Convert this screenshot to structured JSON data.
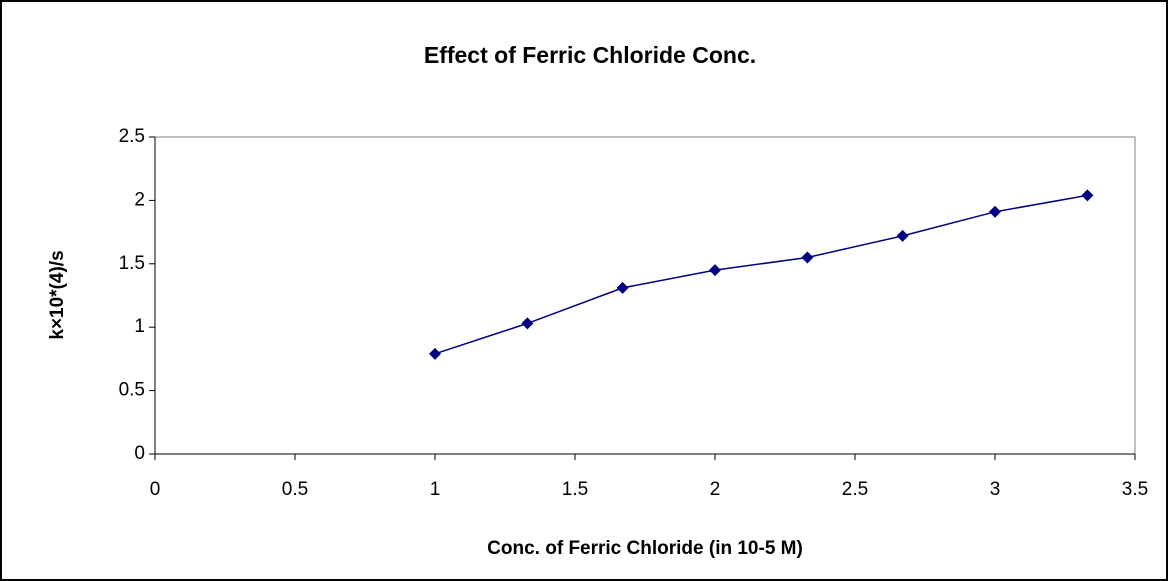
{
  "chart_data": {
    "type": "line",
    "title": "Effect of Ferric Chloride Conc.",
    "x_label": "Conc. of Ferric Chloride (in 10-5 M)",
    "y_label": "k×10*(4)/s",
    "x": [
      1,
      1.33,
      1.67,
      2,
      2.33,
      2.67,
      3,
      3.33
    ],
    "series": [
      {
        "color": "#000080",
        "values": [
          0.79,
          1.03,
          1.31,
          1.45,
          1.55,
          1.72,
          1.91,
          2.04
        ]
      }
    ],
    "xlim": [
      0,
      3.5
    ],
    "xticks": [
      0,
      0.5,
      1,
      1.5,
      2,
      2.5,
      3,
      3.5
    ],
    "ylim": [
      0,
      2.5
    ],
    "yticks": [
      0,
      0.5,
      1,
      1.5,
      2,
      2.5
    ],
    "grid": false
  }
}
